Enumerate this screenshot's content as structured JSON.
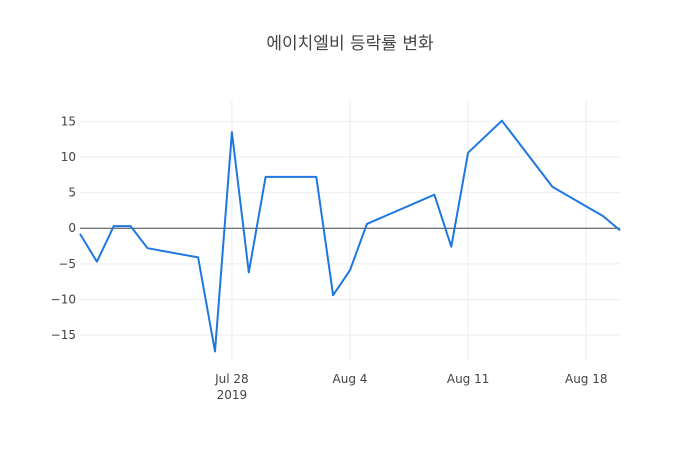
{
  "chart_data": {
    "type": "line",
    "title": "에이치엘비 등락률 변화",
    "xlabel": "",
    "ylabel": "",
    "ylim": [
      -18.5,
      18
    ],
    "x_range": [
      "2019-07-19",
      "2019-08-20"
    ],
    "grid": true,
    "x_ticks": [
      {
        "date": "2019-07-28",
        "label": "Jul 28",
        "sublabel": "2019"
      },
      {
        "date": "2019-08-04",
        "label": "Aug 4",
        "sublabel": ""
      },
      {
        "date": "2019-08-11",
        "label": "Aug 11",
        "sublabel": ""
      },
      {
        "date": "2019-08-18",
        "label": "Aug 18",
        "sublabel": ""
      }
    ],
    "y_ticks": [
      15,
      10,
      5,
      0,
      -5,
      -10,
      -15
    ],
    "y_tick_labels": [
      "15",
      "10",
      "5",
      "0",
      "−5",
      "−10",
      "−15"
    ],
    "series": [
      {
        "color": "#1f77e0",
        "points": [
          {
            "x": "2019-07-19",
            "y": -0.8
          },
          {
            "x": "2019-07-20",
            "y": -4.7
          },
          {
            "x": "2019-07-21",
            "y": 0.3
          },
          {
            "x": "2019-07-22",
            "y": 0.3
          },
          {
            "x": "2019-07-23",
            "y": -2.8
          },
          {
            "x": "2019-07-26",
            "y": -4.1
          },
          {
            "x": "2019-07-27",
            "y": -17.3
          },
          {
            "x": "2019-07-28",
            "y": 13.5
          },
          {
            "x": "2019-07-29",
            "y": -6.2
          },
          {
            "x": "2019-07-30",
            "y": 7.2
          },
          {
            "x": "2019-08-02",
            "y": 7.2
          },
          {
            "x": "2019-08-03",
            "y": -9.4
          },
          {
            "x": "2019-08-04",
            "y": -5.9
          },
          {
            "x": "2019-08-05",
            "y": 0.6
          },
          {
            "x": "2019-08-09",
            "y": 4.7
          },
          {
            "x": "2019-08-10",
            "y": -2.6
          },
          {
            "x": "2019-08-11",
            "y": 10.6
          },
          {
            "x": "2019-08-13",
            "y": 15.1
          },
          {
            "x": "2019-08-16",
            "y": 5.8
          },
          {
            "x": "2019-08-19",
            "y": 1.7
          },
          {
            "x": "2019-08-20",
            "y": -0.3
          }
        ]
      }
    ]
  }
}
